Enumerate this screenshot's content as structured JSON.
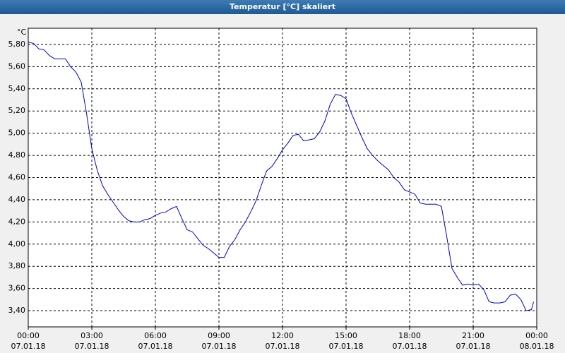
{
  "chart_data": {
    "type": "line",
    "title": "Temperatur [°C] skaliert",
    "y_unit": "°C",
    "x": [
      0,
      0.25,
      0.5,
      0.75,
      1,
      1.25,
      1.5,
      1.75,
      2,
      2.25,
      2.5,
      2.75,
      3,
      3.25,
      3.5,
      3.75,
      4,
      4.25,
      4.5,
      4.75,
      5,
      5.25,
      5.5,
      5.75,
      6,
      6.25,
      6.5,
      6.75,
      7,
      7.25,
      7.5,
      7.75,
      8,
      8.25,
      8.5,
      8.75,
      9,
      9.25,
      9.5,
      9.75,
      10,
      10.25,
      10.5,
      10.75,
      11,
      11.25,
      11.5,
      11.75,
      12,
      12.25,
      12.5,
      12.75,
      13,
      13.25,
      13.5,
      13.75,
      14,
      14.25,
      14.5,
      14.75,
      15,
      15.25,
      15.5,
      15.75,
      16,
      16.25,
      16.5,
      16.75,
      17,
      17.25,
      17.5,
      17.75,
      18,
      18.25,
      18.5,
      18.75,
      19,
      19.25,
      19.5,
      19.75,
      20,
      20.25,
      20.5,
      20.75,
      21,
      21.25,
      21.5,
      21.75,
      22,
      22.25,
      22.5,
      22.75,
      23,
      23.25,
      23.5,
      23.75,
      23.85
    ],
    "series": [
      {
        "name": "Temperatur",
        "color": "#0000cc",
        "values": [
          5.82,
          5.81,
          5.76,
          5.75,
          5.7,
          5.67,
          5.67,
          5.67,
          5.6,
          5.55,
          5.46,
          5.18,
          4.86,
          4.67,
          4.53,
          4.45,
          4.38,
          4.31,
          4.25,
          4.21,
          4.2,
          4.2,
          4.22,
          4.23,
          4.26,
          4.28,
          4.29,
          4.32,
          4.34,
          4.23,
          4.13,
          4.11,
          4.05,
          3.99,
          3.96,
          3.92,
          3.88,
          3.88,
          3.98,
          4.04,
          4.13,
          4.2,
          4.29,
          4.39,
          4.53,
          4.66,
          4.7,
          4.77,
          4.85,
          4.91,
          4.98,
          4.99,
          4.93,
          4.94,
          4.95,
          5.01,
          5.11,
          5.26,
          5.35,
          5.34,
          5.31,
          5.18,
          5.07,
          4.96,
          4.86,
          4.8,
          4.75,
          4.71,
          4.67,
          4.6,
          4.56,
          4.49,
          4.47,
          4.45,
          4.37,
          4.36,
          4.36,
          4.36,
          4.34,
          4.07,
          3.78,
          3.7,
          3.63,
          3.64,
          3.63,
          3.64,
          3.59,
          3.48,
          3.47,
          3.47,
          3.48,
          3.54,
          3.55,
          3.5,
          3.4,
          3.41,
          3.48
        ]
      }
    ],
    "xlim": [
      0,
      24
    ],
    "xticks": [
      {
        "value": 0,
        "label": "00:00"
      },
      {
        "value": 3,
        "label": "03:00"
      },
      {
        "value": 6,
        "label": "06:00"
      },
      {
        "value": 9,
        "label": "09:00"
      },
      {
        "value": 12,
        "label": "12:00"
      },
      {
        "value": 15,
        "label": "15:00"
      },
      {
        "value": 18,
        "label": "18:00"
      },
      {
        "value": 21,
        "label": "21:00"
      },
      {
        "value": 24,
        "label": "00:00"
      }
    ],
    "xtick_dates": [
      "07.01.18",
      "07.01.18",
      "07.01.18",
      "07.01.18",
      "07.01.18",
      "07.01.18",
      "07.01.18",
      "07.01.18",
      "08.01.18"
    ],
    "ylim": [
      3.254,
      5.946
    ],
    "yticks": [
      {
        "value": 3.4,
        "label": "3,40"
      },
      {
        "value": 3.6,
        "label": "3,60"
      },
      {
        "value": 3.8,
        "label": "3,80"
      },
      {
        "value": 4.0,
        "label": "4,00"
      },
      {
        "value": 4.2,
        "label": "4,20"
      },
      {
        "value": 4.4,
        "label": "4,40"
      },
      {
        "value": 4.6,
        "label": "4,60"
      },
      {
        "value": 4.8,
        "label": "4,80"
      },
      {
        "value": 5.0,
        "label": "5,00"
      },
      {
        "value": 5.2,
        "label": "5,20"
      },
      {
        "value": 5.4,
        "label": "5,40"
      },
      {
        "value": 5.6,
        "label": "5,60"
      },
      {
        "value": 5.8,
        "label": "5,80"
      }
    ],
    "grid": true
  }
}
